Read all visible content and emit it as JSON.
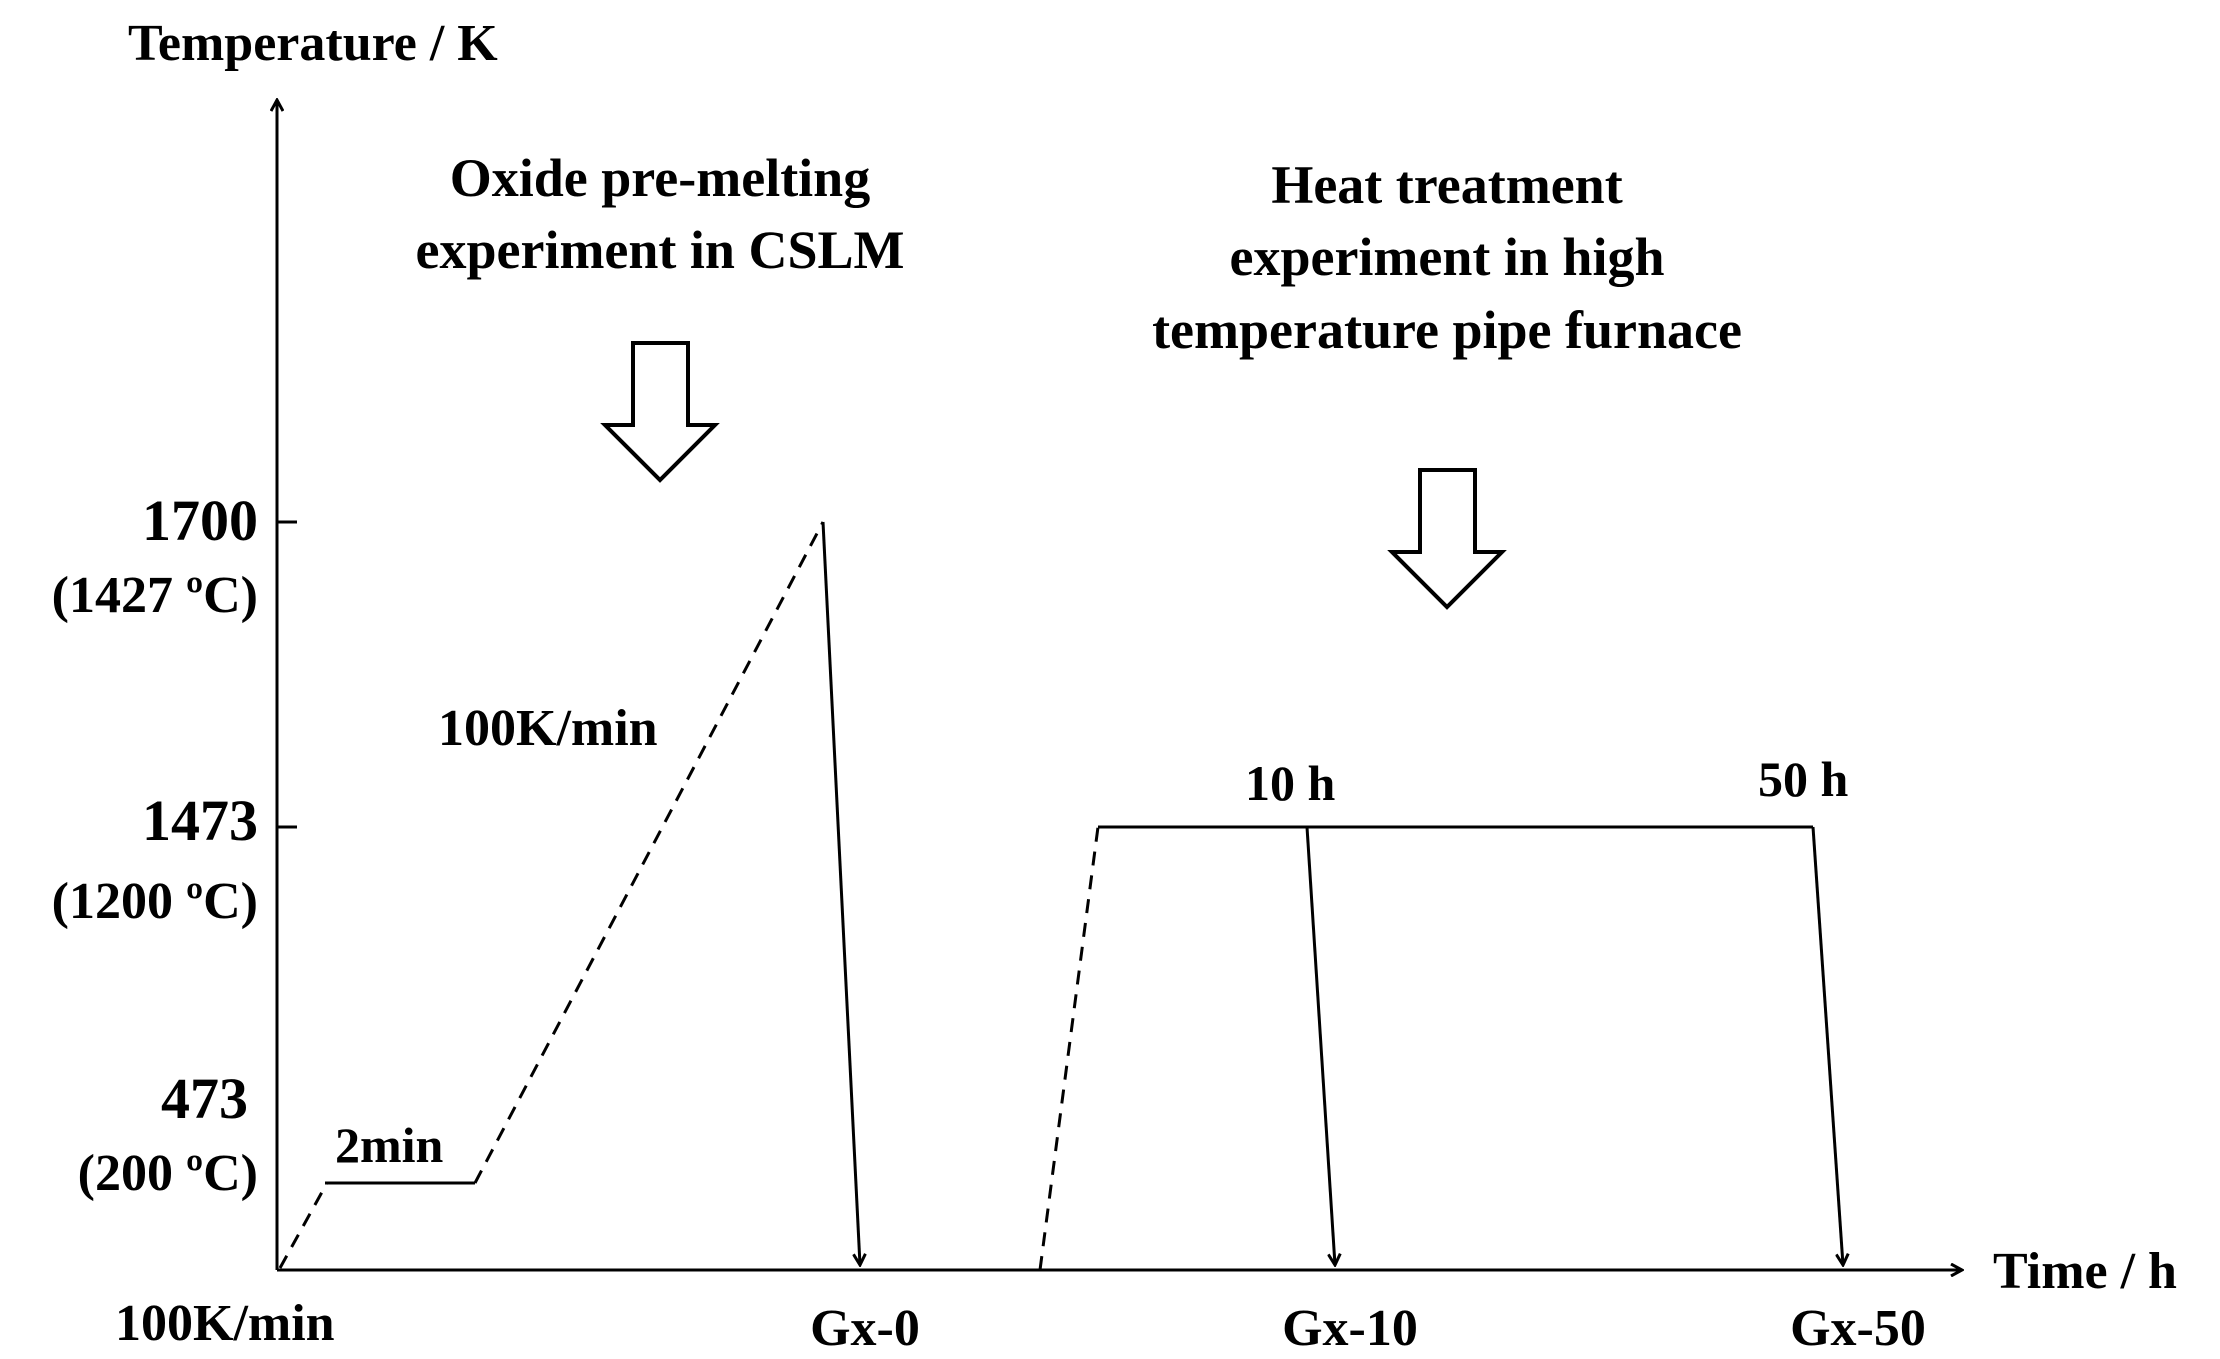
{
  "axes": {
    "y_title": "Temperature / K",
    "x_title": "Time / h"
  },
  "y_ticks": [
    {
      "kelvin": "1700",
      "celsius": "(1427 ºC)"
    },
    {
      "kelvin": "1473",
      "celsius": "(1200 ºC)"
    },
    {
      "kelvin": "473",
      "celsius": "(200 ºC)"
    }
  ],
  "x_labels": {
    "origin": "100K/min",
    "sample_0": "Gx-0",
    "sample_10": "Gx-10",
    "sample_50": "Gx-50"
  },
  "annotations": {
    "hold_2min": "2min",
    "ramp_rate": "100K/min",
    "hold_10h": "10 h",
    "hold_50h": "50 h"
  },
  "sections": {
    "cslm_line1": "Oxide pre-melting",
    "cslm_line2": "experiment in CSLM",
    "furnace_line1": "Heat treatment",
    "furnace_line2": "experiment in high",
    "furnace_line3": "temperature pipe furnace"
  },
  "colors": {
    "ink": "#000000",
    "background": "#ffffff"
  }
}
